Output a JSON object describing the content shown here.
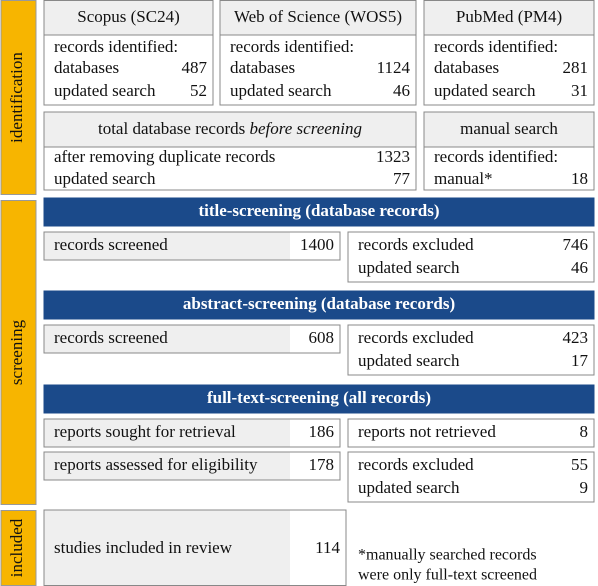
{
  "stages": [
    "identification",
    "screening",
    "included"
  ],
  "sources": [
    {
      "title": "Scopus (SC24)",
      "label": "records identified:",
      "rows": [
        {
          "label": "databases",
          "value": 487
        },
        {
          "label": "updated search",
          "value": 52
        }
      ]
    },
    {
      "title": "Web of Science (WOS5)",
      "label": "records identified:",
      "rows": [
        {
          "label": "databases",
          "value": 1124
        },
        {
          "label": "updated search",
          "value": 46
        }
      ]
    },
    {
      "title": "PubMed (PM4)",
      "label": "records identified:",
      "rows": [
        {
          "label": "databases",
          "value": 281
        },
        {
          "label": "updated search",
          "value": 31
        }
      ]
    }
  ],
  "total": {
    "title": "total database records ",
    "title_emphasis": "before screening",
    "rows": [
      {
        "label": "after removing duplicate records",
        "value": 1323
      },
      {
        "label": "updated search",
        "value": 77
      }
    ]
  },
  "manual": {
    "title": "manual search",
    "label": "records identified:",
    "rows": [
      {
        "label": "manual*",
        "value": 18
      }
    ]
  },
  "phases": [
    {
      "title": "title-screening (database records)",
      "rows": [
        {
          "left": {
            "label": "records screened",
            "value": 1400
          },
          "right": [
            {
              "label": "records excluded",
              "value": 746
            },
            {
              "label": "updated search",
              "value": 46
            }
          ]
        }
      ]
    },
    {
      "title": "abstract-screening (database records)",
      "rows": [
        {
          "left": {
            "label": "records screened",
            "value": 608
          },
          "right": [
            {
              "label": "records excluded",
              "value": 423
            },
            {
              "label": "updated search",
              "value": 17
            }
          ]
        }
      ]
    },
    {
      "title": "full-text-screening (all records)",
      "rows": [
        {
          "left": {
            "label": "reports sought for retrieval",
            "value": 186
          },
          "right": [
            {
              "label": "reports not retrieved",
              "value": 8
            }
          ]
        },
        {
          "left": {
            "label": "reports assessed for eligibility",
            "value": 178
          },
          "right": [
            {
              "label": "records excluded",
              "value": 55
            },
            {
              "label": "updated search",
              "value": 9
            }
          ]
        }
      ]
    }
  ],
  "included": {
    "label": "studies included in review",
    "value": 114
  },
  "note": [
    "*manually searched records",
    "were only full-text screened"
  ]
}
